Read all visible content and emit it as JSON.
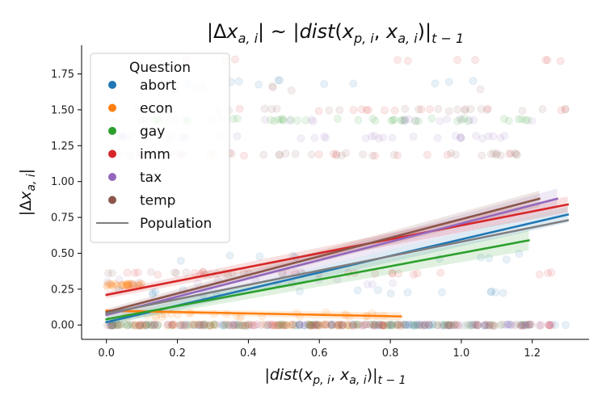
{
  "chart_data": {
    "type": "scatter",
    "title": "|Δx_{a,i}| ~ |dist(x_{p,i}, x_{a,i})|_{t−1}",
    "xlabel": "|dist(x_{p,i}, x_{a,i})|_{t−1}",
    "ylabel": "|Δx_{a,i}|",
    "xlim": [
      -0.07,
      1.36
    ],
    "ylim": [
      -0.1,
      1.95
    ],
    "xticks": [
      "0.0",
      "0.2",
      "0.4",
      "0.6",
      "0.8",
      "1.0",
      "1.2"
    ],
    "yticks": [
      "0.00",
      "0.25",
      "0.50",
      "0.75",
      "1.00",
      "1.25",
      "1.50",
      "1.75"
    ],
    "grid": false,
    "legend": {
      "title": "Question",
      "placement": "top-left",
      "entries": [
        {
          "name": "abort",
          "color": "#1f77b4",
          "marker": "dot"
        },
        {
          "name": "econ",
          "color": "#ff7f0e",
          "marker": "dot"
        },
        {
          "name": "gay",
          "color": "#2ca02c",
          "marker": "dot"
        },
        {
          "name": "imm",
          "color": "#d62728",
          "marker": "dot"
        },
        {
          "name": "tax",
          "color": "#9467bd",
          "marker": "dot"
        },
        {
          "name": "temp",
          "color": "#8c564b",
          "marker": "dot"
        },
        {
          "name": "Population",
          "color": "#7f7f7f",
          "marker": "line"
        }
      ]
    },
    "regression_lines": [
      {
        "series": "abort",
        "color": "#1f77b4",
        "x": [
          0.0,
          1.3
        ],
        "y": [
          0.02,
          0.77
        ],
        "band": 0.04
      },
      {
        "series": "econ",
        "color": "#ff7f0e",
        "x": [
          0.0,
          0.83
        ],
        "y": [
          0.1,
          0.06
        ],
        "band": 0.02
      },
      {
        "series": "gay",
        "color": "#2ca02c",
        "x": [
          0.0,
          1.19
        ],
        "y": [
          0.04,
          0.59
        ],
        "band": 0.05
      },
      {
        "series": "imm",
        "color": "#d62728",
        "x": [
          0.0,
          1.3
        ],
        "y": [
          0.21,
          0.84
        ],
        "band": 0.04
      },
      {
        "series": "tax",
        "color": "#9467bd",
        "x": [
          0.0,
          1.27
        ],
        "y": [
          0.07,
          0.88
        ],
        "band": 0.05
      },
      {
        "series": "temp",
        "color": "#8c564b",
        "x": [
          0.0,
          1.22
        ],
        "y": [
          0.09,
          0.88
        ],
        "band": 0.04
      },
      {
        "series": "Population",
        "color": "#7f7f7f",
        "x": [
          0.0,
          1.3
        ],
        "y": [
          0.08,
          0.73
        ],
        "band": 0.0
      }
    ],
    "scatter_bands": [
      {
        "series": "abort",
        "color": "#1f77b4",
        "y": 0.0,
        "x": [
          0.0,
          1.3
        ],
        "density": 0.55,
        "jitter": 0.005
      },
      {
        "series": "econ",
        "color": "#ff7f0e",
        "y": 0.0,
        "x": [
          0.0,
          0.85
        ],
        "density": 0.55,
        "jitter": 0.005
      },
      {
        "series": "gay",
        "color": "#2ca02c",
        "y": 0.0,
        "x": [
          0.0,
          1.2
        ],
        "density": 0.55,
        "jitter": 0.005
      },
      {
        "series": "imm",
        "color": "#d62728",
        "y": 0.0,
        "x": [
          0.0,
          1.3
        ],
        "density": 0.55,
        "jitter": 0.005
      },
      {
        "series": "tax",
        "color": "#9467bd",
        "y": 0.0,
        "x": [
          0.0,
          1.27
        ],
        "density": 0.55,
        "jitter": 0.005
      },
      {
        "series": "temp",
        "color": "#8c564b",
        "y": 0.0,
        "x": [
          0.0,
          1.22
        ],
        "density": 0.55,
        "jitter": 0.005
      },
      {
        "series": "econ",
        "color": "#ff7f0e",
        "y": 0.07,
        "x": [
          0.0,
          0.8
        ],
        "density": 0.25,
        "jitter": 0.02
      },
      {
        "series": "econ",
        "color": "#ff7f0e",
        "y": 0.28,
        "x": [
          0.0,
          0.1
        ],
        "density": 0.3,
        "jitter": 0.01
      },
      {
        "series": "imm",
        "color": "#d62728",
        "y": 0.36,
        "x": [
          0.0,
          1.3
        ],
        "density": 0.2,
        "jitter": 0.01
      },
      {
        "series": "temp",
        "color": "#8c564b",
        "y": 0.36,
        "x": [
          0.0,
          0.6
        ],
        "density": 0.15,
        "jitter": 0.01
      },
      {
        "series": "abort",
        "color": "#1f77b4",
        "y": 0.23,
        "x": [
          0.0,
          1.2
        ],
        "density": 0.15,
        "jitter": 0.02
      },
      {
        "series": "tax",
        "color": "#9467bd",
        "y": 0.3,
        "x": [
          0.0,
          1.1
        ],
        "density": 0.12,
        "jitter": 0.02
      },
      {
        "series": "abort",
        "color": "#1f77b4",
        "y": 0.47,
        "x": [
          0.0,
          1.2
        ],
        "density": 0.08,
        "jitter": 0.03
      },
      {
        "series": "temp",
        "color": "#8c564b",
        "y": 1.19,
        "x": [
          0.0,
          1.2
        ],
        "density": 0.3,
        "jitter": 0.01
      },
      {
        "series": "imm",
        "color": "#d62728",
        "y": 1.19,
        "x": [
          0.0,
          1.2
        ],
        "density": 0.12,
        "jitter": 0.01
      },
      {
        "series": "tax",
        "color": "#9467bd",
        "y": 1.31,
        "x": [
          0.0,
          1.2
        ],
        "density": 0.3,
        "jitter": 0.01
      },
      {
        "series": "gay",
        "color": "#2ca02c",
        "y": 1.43,
        "x": [
          0.0,
          1.2
        ],
        "density": 0.4,
        "jitter": 0.01
      },
      {
        "series": "tax",
        "color": "#9467bd",
        "y": 1.43,
        "x": [
          0.0,
          1.2
        ],
        "density": 0.12,
        "jitter": 0.01
      },
      {
        "series": "temp",
        "color": "#8c564b",
        "y": 1.5,
        "x": [
          0.0,
          1.3
        ],
        "density": 0.2,
        "jitter": 0.01
      },
      {
        "series": "imm",
        "color": "#d62728",
        "y": 1.5,
        "x": [
          0.0,
          1.3
        ],
        "density": 0.12,
        "jitter": 0.01
      },
      {
        "series": "abort",
        "color": "#1f77b4",
        "y": 1.69,
        "x": [
          0.0,
          1.3
        ],
        "density": 0.1,
        "jitter": 0.02
      },
      {
        "series": "imm",
        "color": "#d62728",
        "y": 1.85,
        "x": [
          0.0,
          1.3
        ],
        "density": 0.08,
        "jitter": 0.01
      },
      {
        "series": "temp",
        "color": "#8c564b",
        "y": 1.65,
        "x": [
          0.0,
          1.2
        ],
        "density": 0.06,
        "jitter": 0.02
      }
    ]
  }
}
